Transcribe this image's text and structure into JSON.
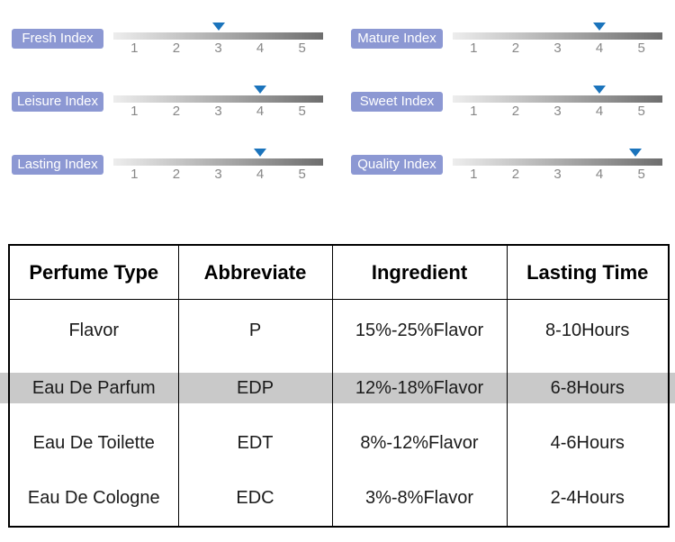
{
  "sliders": {
    "scale_labels": [
      "1",
      "2",
      "3",
      "4",
      "5"
    ],
    "items": [
      {
        "label": "Fresh Index",
        "value": 3
      },
      {
        "label": "Mature Index",
        "value": 4
      },
      {
        "label": "Leisure Index",
        "value": 4
      },
      {
        "label": "Sweet Index",
        "value": 4
      },
      {
        "label": "Lasting Index",
        "value": 4
      },
      {
        "label": "Quality Index",
        "value": 4.85
      }
    ],
    "colors": {
      "label_bg": "#8c98d3",
      "label_text": "#ffffff",
      "marker": "#1b74bc",
      "bar_from": "#ededed",
      "bar_to": "#6e6e6e",
      "tick_text": "#878787"
    }
  },
  "table": {
    "headers": [
      "Perfume Type",
      "Abbreviate",
      "Ingredient",
      "Lasting Time"
    ],
    "rows": [
      {
        "type": "Flavor",
        "abbr": "P",
        "ingredient": "15%-25%Flavor",
        "time": "8-10Hours",
        "highlighted": false
      },
      {
        "type": "Eau De Parfum",
        "abbr": "EDP",
        "ingredient": "12%-18%Flavor",
        "time": "6-8Hours",
        "highlighted": true
      },
      {
        "type": "Eau De Toilette",
        "abbr": "EDT",
        "ingredient": "8%-12%Flavor",
        "time": "4-6Hours",
        "highlighted": false
      },
      {
        "type": "Eau De Cologne",
        "abbr": "EDC",
        "ingredient": "3%-8%Flavor",
        "time": "2-4Hours",
        "highlighted": false
      }
    ],
    "highlight_color": "#c9c9c9"
  },
  "chart_data": [
    {
      "type": "scatter",
      "title": "Perfume index ratings (marker position on 1-5 gradient scale)",
      "categories": [
        "Fresh Index",
        "Mature Index",
        "Leisure Index",
        "Sweet Index",
        "Lasting Index",
        "Quality Index"
      ],
      "values": [
        3,
        4,
        4,
        4,
        4,
        4.85
      ],
      "xlabel": "",
      "ylabel": "",
      "xlim": [
        1,
        5
      ],
      "legend": "none",
      "grid": false
    },
    {
      "type": "table",
      "columns": [
        "Perfume Type",
        "Abbreviate",
        "Ingredient",
        "Lasting Time"
      ],
      "rows": [
        [
          "Flavor",
          "P",
          "15%-25%Flavor",
          "8-10Hours"
        ],
        [
          "Eau De Parfum",
          "EDP",
          "12%-18%Flavor",
          "6-8Hours"
        ],
        [
          "Eau De Toilette",
          "EDT",
          "8%-12%Flavor",
          "4-6Hours"
        ],
        [
          "Eau De Cologne",
          "EDC",
          "3%-8%Flavor",
          "2-4Hours"
        ]
      ],
      "highlighted_row": "Eau De Parfum"
    }
  ]
}
